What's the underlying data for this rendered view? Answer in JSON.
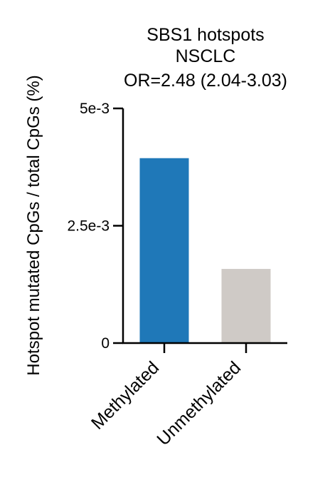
{
  "chart_data": {
    "type": "bar",
    "title_lines": [
      "SBS1 hotspots",
      "NSCLC",
      "OR=2.48 (2.04-3.03)"
    ],
    "xlabel": "",
    "ylabel": "Hotspot mutated CpGs / total CpGs (%)",
    "ylim": [
      0,
      0.005
    ],
    "yticks": [
      0,
      0.0025,
      0.005
    ],
    "ytick_labels": [
      "0",
      "2.5e-3",
      "5e-3"
    ],
    "categories": [
      "Methylated",
      "Unmethylated"
    ],
    "values": [
      0.00394,
      0.00158
    ],
    "colors": [
      "#1f78b8",
      "#cfcac6"
    ],
    "grid": false,
    "legend": "none"
  }
}
